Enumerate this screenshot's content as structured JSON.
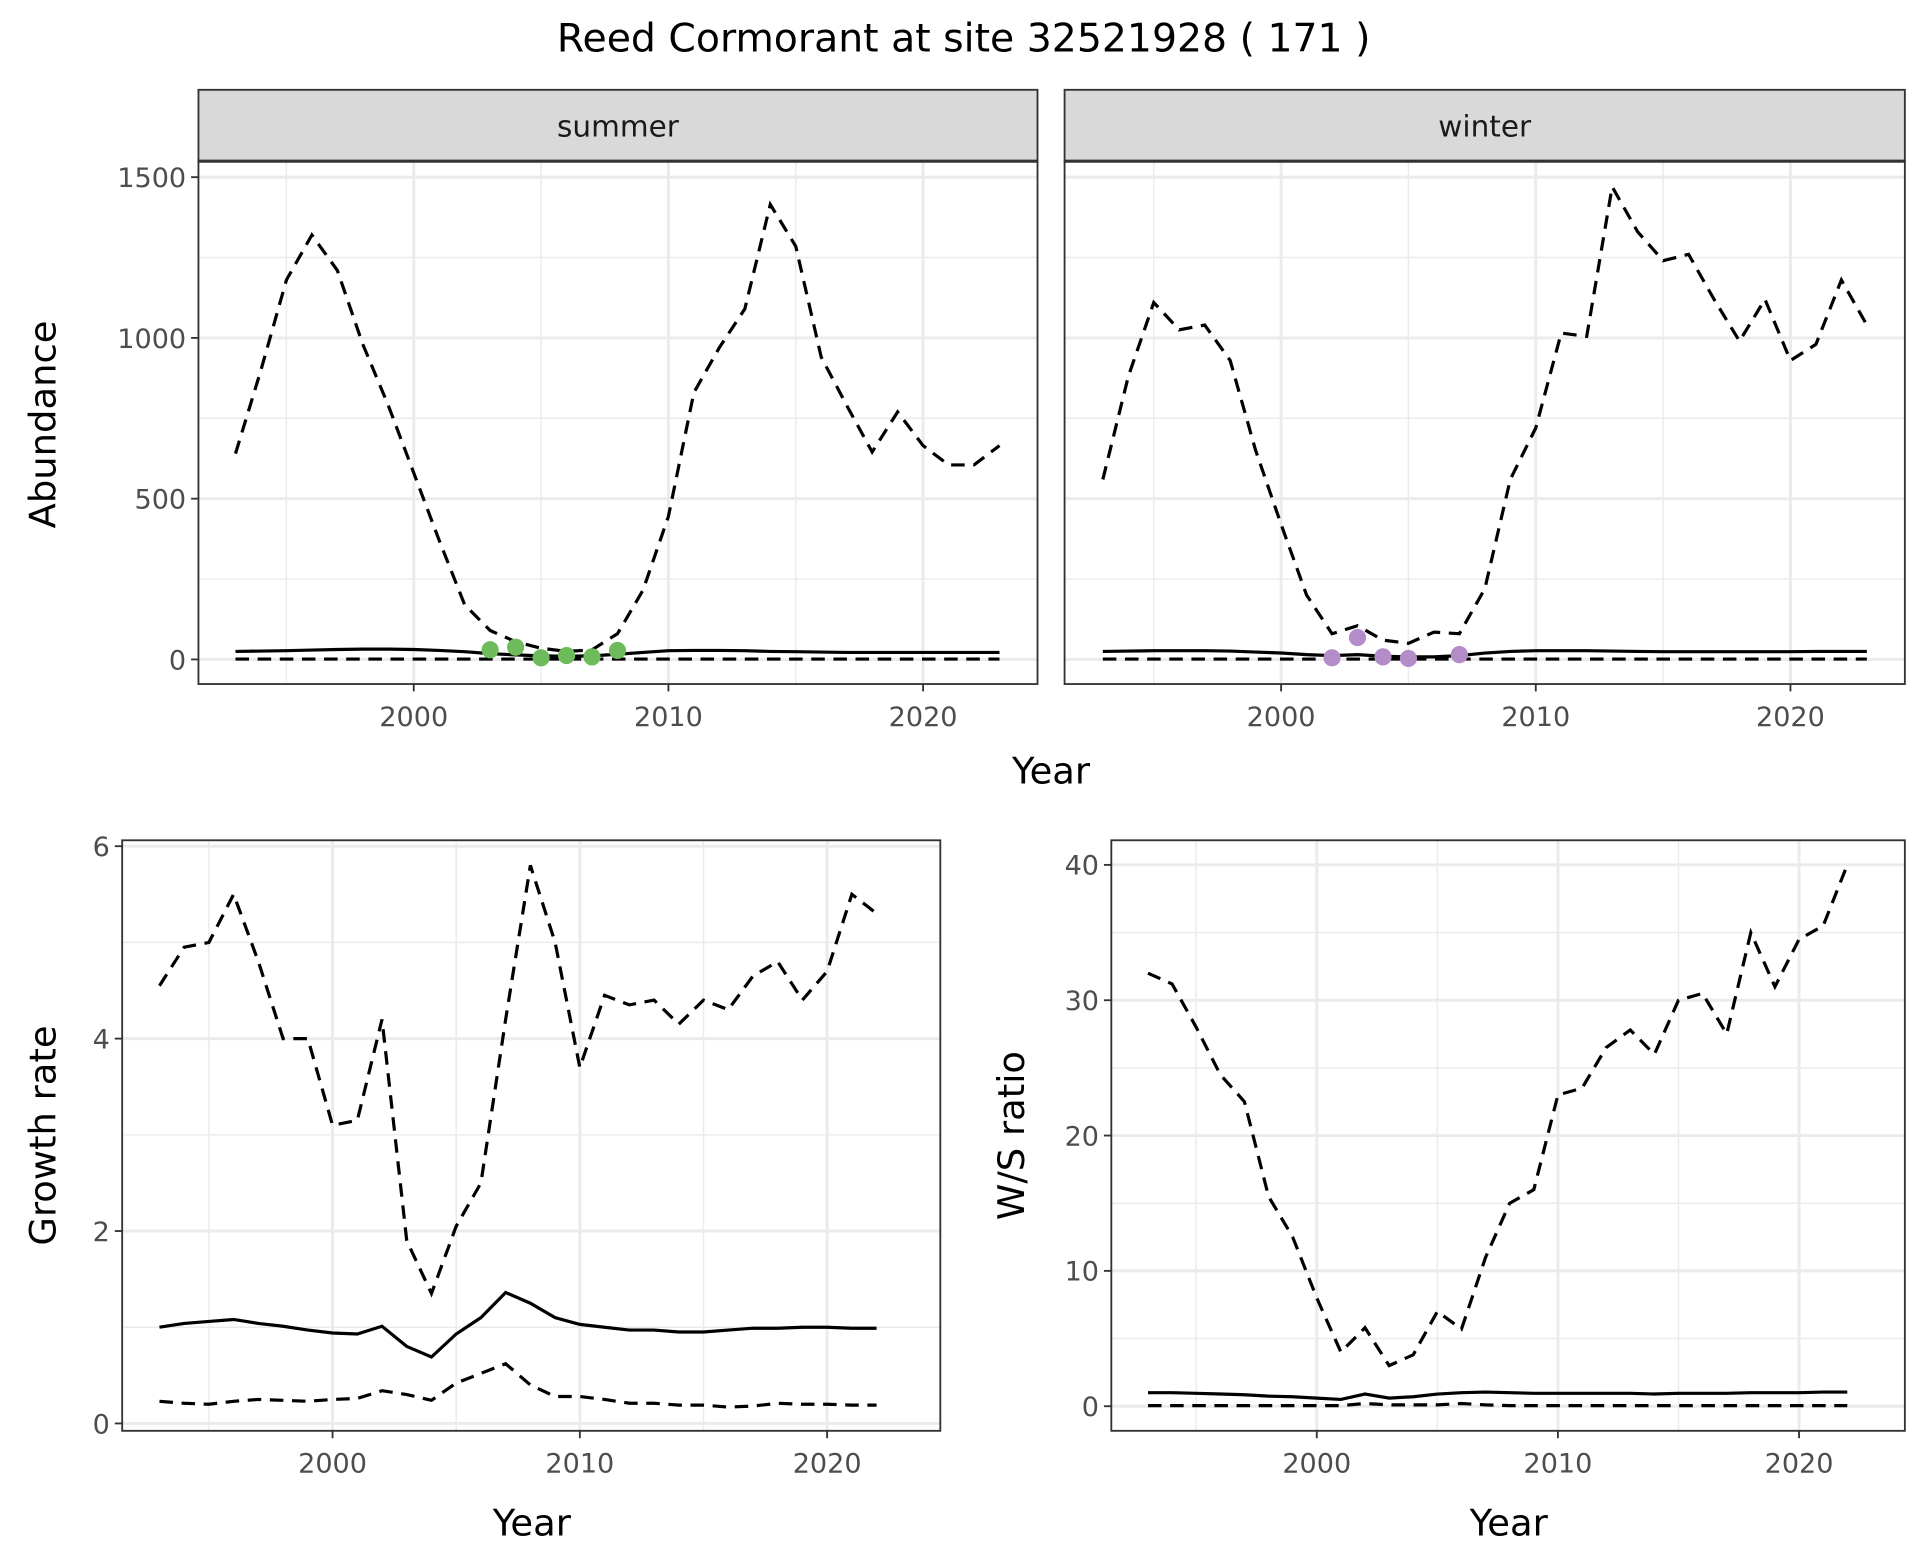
{
  "chart_data": [
    {
      "type": "line",
      "title": "Reed Cormorant at site 32521928 ( 171 )",
      "facets": [
        "summer",
        "winter"
      ],
      "xlabel": "Year",
      "ylabel": "Abundance",
      "xticks": [
        2000,
        2010,
        2020
      ],
      "yticks": [
        0,
        500,
        1000,
        1500
      ],
      "xlim": [
        1991.5,
        2024.5
      ],
      "ylim": [
        -75,
        1575
      ],
      "grid": true,
      "years": [
        1993,
        1994,
        1995,
        1996,
        1997,
        1998,
        1999,
        2000,
        2001,
        2002,
        2003,
        2004,
        2005,
        2006,
        2007,
        2008,
        2009,
        2010,
        2011,
        2012,
        2013,
        2014,
        2015,
        2016,
        2017,
        2018,
        2019,
        2020,
        2021,
        2022,
        2023
      ],
      "panels": {
        "summer": {
          "upper": [
            640,
            900,
            1180,
            1320,
            1210,
            980,
            790,
            580,
            370,
            170,
            90,
            55,
            35,
            25,
            30,
            80,
            215,
            445,
            830,
            970,
            1090,
            1415,
            1285,
            940,
            790,
            645,
            770,
            665,
            605,
            605,
            665
          ],
          "estimate": [
            25,
            26,
            27,
            29,
            31,
            32,
            32,
            31,
            28,
            24,
            18,
            14,
            11,
            10,
            11,
            16,
            22,
            27,
            28,
            28,
            27,
            25,
            24,
            23,
            22,
            22,
            22,
            22,
            22,
            22,
            22
          ],
          "lower": [
            1,
            1,
            1,
            1,
            1,
            1,
            1,
            1,
            1,
            1,
            1,
            1,
            1,
            1,
            1,
            1,
            1,
            1,
            1,
            1,
            1,
            1,
            1,
            1,
            1,
            1,
            1,
            1,
            1,
            1,
            1
          ],
          "counts": {
            "years": [
              2003,
              2004,
              2005,
              2006,
              2007,
              2008
            ],
            "values": [
              30,
              38,
              5,
              12,
              8,
              28
            ]
          },
          "point_color": "#6dbb5a"
        },
        "winter": {
          "upper": [
            560,
            880,
            1110,
            1025,
            1040,
            930,
            650,
            420,
            200,
            80,
            105,
            60,
            50,
            85,
            80,
            220,
            560,
            720,
            1015,
            1005,
            1470,
            1330,
            1240,
            1260,
            1120,
            990,
            1120,
            930,
            980,
            1180,
            1040
          ],
          "estimate": [
            25,
            26,
            27,
            27,
            27,
            26,
            23,
            20,
            15,
            12,
            15,
            10,
            8,
            8,
            12,
            20,
            25,
            27,
            27,
            27,
            26,
            25,
            24,
            24,
            24,
            24,
            24,
            24,
            25,
            25,
            25
          ],
          "lower": [
            1,
            1,
            1,
            1,
            1,
            1,
            1,
            1,
            1,
            1,
            1,
            1,
            1,
            1,
            1,
            1,
            1,
            1,
            1,
            1,
            1,
            1,
            1,
            1,
            1,
            1,
            1,
            1,
            1,
            1,
            1
          ],
          "counts": {
            "years": [
              2002,
              2003,
              2004,
              2005,
              2007
            ],
            "values": [
              5,
              68,
              8,
              3,
              15
            ]
          },
          "point_color": "#b48cc8"
        }
      }
    },
    {
      "type": "line",
      "xlabel": "Year",
      "ylabel": "Growth rate",
      "xticks": [
        2000,
        2010,
        2020
      ],
      "yticks": [
        0,
        2,
        4,
        6
      ],
      "grid": true,
      "years": [
        1993,
        1994,
        1995,
        1996,
        1997,
        1998,
        1999,
        2000,
        2001,
        2002,
        2003,
        2004,
        2005,
        2006,
        2007,
        2008,
        2009,
        2010,
        2011,
        2012,
        2013,
        2014,
        2015,
        2016,
        2017,
        2018,
        2019,
        2020,
        2021,
        2022
      ],
      "upper": [
        4.55,
        4.95,
        5.0,
        5.5,
        4.8,
        4.0,
        4.0,
        3.1,
        3.15,
        4.2,
        1.9,
        1.35,
        2.05,
        2.5,
        4.2,
        5.8,
        5.0,
        3.7,
        4.45,
        4.35,
        4.4,
        4.15,
        4.4,
        4.3,
        4.65,
        4.8,
        4.4,
        4.7,
        5.5,
        5.3
      ],
      "estimate": [
        1.0,
        1.04,
        1.06,
        1.08,
        1.04,
        1.01,
        0.97,
        0.94,
        0.93,
        1.01,
        0.8,
        0.69,
        0.93,
        1.1,
        1.36,
        1.25,
        1.1,
        1.03,
        1.0,
        0.97,
        0.97,
        0.95,
        0.95,
        0.97,
        0.99,
        0.99,
        1.0,
        1.0,
        0.99,
        0.99
      ],
      "lower": [
        0.23,
        0.21,
        0.2,
        0.23,
        0.25,
        0.24,
        0.23,
        0.25,
        0.26,
        0.34,
        0.3,
        0.24,
        0.42,
        0.52,
        0.62,
        0.4,
        0.28,
        0.28,
        0.25,
        0.21,
        0.21,
        0.19,
        0.19,
        0.17,
        0.18,
        0.21,
        0.2,
        0.2,
        0.19,
        0.19
      ]
    },
    {
      "type": "line",
      "xlabel": "Year",
      "ylabel": "W/S ratio",
      "xticks": [
        2000,
        2010,
        2020
      ],
      "yticks": [
        0,
        10,
        20,
        30,
        40
      ],
      "grid": true,
      "years": [
        1993,
        1994,
        1995,
        1996,
        1997,
        1998,
        1999,
        2000,
        2001,
        2002,
        2003,
        2004,
        2005,
        2006,
        2007,
        2008,
        2009,
        2010,
        2011,
        2012,
        2013,
        2014,
        2015,
        2016,
        2017,
        2018,
        2019,
        2020,
        2021,
        2022
      ],
      "upper": [
        32,
        31.2,
        28,
        24.5,
        22.5,
        15.5,
        12.5,
        8,
        4,
        5.8,
        3,
        3.8,
        7,
        5.7,
        11,
        15,
        16,
        23,
        23.5,
        26.5,
        27.8,
        26,
        30,
        30.5,
        27.5,
        35,
        31,
        34.5,
        35.5,
        40
      ],
      "estimate": [
        1.0,
        1.0,
        0.95,
        0.9,
        0.85,
        0.75,
        0.7,
        0.6,
        0.5,
        0.9,
        0.6,
        0.7,
        0.9,
        1.0,
        1.05,
        1.0,
        0.95,
        0.95,
        0.95,
        0.95,
        0.95,
        0.9,
        0.95,
        0.95,
        0.95,
        1.0,
        1.0,
        1.0,
        1.05,
        1.05
      ],
      "lower": [
        0.05,
        0.05,
        0.05,
        0.05,
        0.05,
        0.05,
        0.05,
        0.05,
        0.05,
        0.2,
        0.1,
        0.1,
        0.1,
        0.2,
        0.1,
        0.05,
        0.05,
        0.05,
        0.05,
        0.05,
        0.05,
        0.05,
        0.05,
        0.05,
        0.05,
        0.05,
        0.05,
        0.05,
        0.05,
        0.05
      ]
    }
  ]
}
